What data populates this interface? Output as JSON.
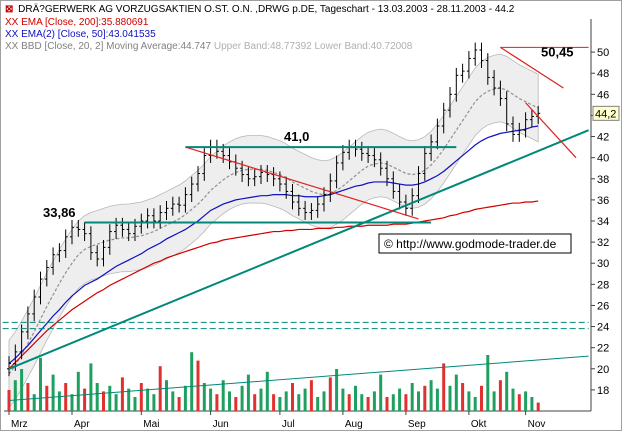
{
  "chart_data": {
    "type": "candlestick",
    "title": "DRÄ?GERWERK AG VORZUGSAKTIEN O.ST. O.N. ,DRWG p.DE, Tageschart - 13.03.2003 - 28.11.2003 - 44.2",
    "legend": [
      {
        "marker": "XX",
        "text": "EMA [Close, 200]:35.880691",
        "color": "#d00000"
      },
      {
        "marker": "XX",
        "text": "EMA(2) [Close, 50]:43.041535",
        "color": "#1010c0"
      },
      {
        "marker": "XX",
        "text": "BBD [Close, 20, 2] Moving Average:44.747",
        "extra": "Upper Band:48.77392 Lower Band:40.72008",
        "color": "#808080"
      }
    ],
    "x_tick_labels": [
      "Mrz",
      "Apr",
      "Mai",
      "Jun",
      "Jul",
      "Aug",
      "Sep",
      "Okt",
      "Nov"
    ],
    "y_tick_labels": [
      "50",
      "48",
      "46",
      "44",
      "42",
      "40",
      "38",
      "36",
      "34",
      "32",
      "30",
      "28",
      "26",
      "24",
      "22",
      "20",
      "18"
    ],
    "ylim": [
      16,
      52
    ],
    "current_price_label": "44,2",
    "annotations": {
      "level_high": "50,45",
      "level_mid": "41,0",
      "level_low": "33,86",
      "watermark": "© http://www.godmode-trader.de"
    },
    "series": {
      "close": [
        20.5,
        21.6,
        23.5,
        25.2,
        26.8,
        28.5,
        29.6,
        30.8,
        31.2,
        32.5,
        33.4,
        33.2,
        32.8,
        31.0,
        30.4,
        31.5,
        33.0,
        33.6,
        33.2,
        32.8,
        33.5,
        34.0,
        34.5,
        34.0,
        34.8,
        35.2,
        35.6,
        35.5,
        36.5,
        37.5,
        38.5,
        40.2,
        41.0,
        40.6,
        40.2,
        39.6,
        39.0,
        38.4,
        38.0,
        38.2,
        38.6,
        38.4,
        38.0,
        37.5,
        36.8,
        35.8,
        35.2,
        34.8,
        35.0,
        35.6,
        36.5,
        37.8,
        39.5,
        40.5,
        41.0,
        40.8,
        40.4,
        40.2,
        39.8,
        39.0,
        38.0,
        36.8,
        35.8,
        35.2,
        36.4,
        38.5,
        40.4,
        41.5,
        43.0,
        44.5,
        46.0,
        47.8,
        48.2,
        49.4,
        50.2,
        49.2,
        47.6,
        46.6,
        45.6,
        43.2,
        42.2,
        42.6,
        43.6,
        43.9,
        44.2
      ],
      "ema200": [
        20.0,
        20.6,
        21.2,
        21.8,
        22.4,
        23.0,
        23.6,
        24.1,
        24.6,
        25.1,
        25.6,
        26.0,
        26.4,
        26.8,
        27.2,
        27.5,
        27.9,
        28.2,
        28.5,
        28.8,
        29.1,
        29.4,
        29.7,
        30.0,
        30.2,
        30.5,
        30.7,
        30.9,
        31.1,
        31.3,
        31.5,
        31.7,
        31.9,
        32.0,
        32.2,
        32.3,
        32.4,
        32.5,
        32.6,
        32.7,
        32.8,
        32.9,
        33.0,
        33.0,
        33.1,
        33.1,
        33.2,
        33.2,
        33.2,
        33.3,
        33.3,
        33.3,
        33.4,
        33.4,
        33.5,
        33.5,
        33.5,
        33.6,
        33.6,
        33.6,
        33.6,
        33.7,
        33.7,
        33.7,
        33.8,
        33.9,
        34.0,
        34.1,
        34.2,
        34.3,
        34.5,
        34.6,
        34.8,
        34.9,
        35.1,
        35.2,
        35.3,
        35.4,
        35.5,
        35.6,
        35.7,
        35.7,
        35.8,
        35.8,
        35.9
      ],
      "ema50": [
        20.5,
        21.0,
        21.6,
        22.2,
        22.9,
        23.6,
        24.3,
        25.0,
        25.6,
        26.3,
        26.9,
        27.4,
        27.9,
        28.2,
        28.5,
        28.9,
        29.3,
        29.7,
        30.0,
        30.3,
        30.6,
        30.9,
        31.3,
        31.6,
        31.9,
        32.3,
        32.6,
        32.9,
        33.2,
        33.6,
        34.0,
        34.5,
        35.0,
        35.3,
        35.6,
        35.8,
        36.0,
        36.1,
        36.2,
        36.3,
        36.4,
        36.4,
        36.5,
        36.5,
        36.5,
        36.4,
        36.4,
        36.3,
        36.3,
        36.3,
        36.4,
        36.5,
        36.7,
        36.9,
        37.1,
        37.3,
        37.4,
        37.6,
        37.7,
        37.7,
        37.7,
        37.6,
        37.5,
        37.4,
        37.4,
        37.5,
        37.7,
        38.0,
        38.3,
        38.7,
        39.2,
        39.7,
        40.2,
        40.7,
        41.2,
        41.6,
        41.9,
        42.1,
        42.3,
        42.4,
        42.5,
        42.6,
        42.7,
        42.9,
        43.0
      ],
      "bb_mid": [
        19.5,
        20.3,
        21.3,
        22.4,
        23.5,
        24.7,
        25.9,
        27.0,
        28.1,
        29.1,
        30.0,
        30.8,
        31.3,
        31.6,
        31.8,
        32.0,
        32.2,
        32.3,
        32.4,
        32.4,
        32.5,
        32.6,
        32.8,
        33.0,
        33.3,
        33.6,
        33.9,
        34.2,
        34.6,
        35.1,
        35.6,
        36.2,
        36.9,
        37.4,
        37.9,
        38.3,
        38.6,
        38.8,
        38.9,
        38.9,
        38.9,
        38.8,
        38.6,
        38.4,
        38.1,
        37.7,
        37.4,
        37.1,
        36.8,
        36.6,
        36.5,
        36.6,
        36.9,
        37.3,
        37.8,
        38.3,
        38.8,
        39.2,
        39.4,
        39.5,
        39.4,
        39.1,
        38.8,
        38.5,
        38.4,
        38.5,
        38.8,
        39.3,
        40.0,
        40.8,
        41.7,
        42.6,
        43.5,
        44.4,
        45.3,
        45.9,
        46.3,
        46.5,
        46.6,
        46.4,
        46.0,
        45.6,
        45.3,
        45.0,
        44.7
      ],
      "volume": [
        1.5,
        2.2,
        3.0,
        2.0,
        1.2,
        3.8,
        1.8,
        2.6,
        1.4,
        2.0,
        1.2,
        2.8,
        1.6,
        3.4,
        2.0,
        1.4,
        1.8,
        1.2,
        2.4,
        1.6,
        1.0,
        2.0,
        1.6,
        1.2,
        3.2,
        2.2,
        1.4,
        1.0,
        1.8,
        4.2,
        3.6,
        2.0,
        1.6,
        1.2,
        2.2,
        1.4,
        1.0,
        1.8,
        2.6,
        1.2,
        1.6,
        2.8,
        1.2,
        1.0,
        1.4,
        2.0,
        1.2,
        1.6,
        2.2,
        1.0,
        1.4,
        2.4,
        3.0,
        1.6,
        1.2,
        1.8,
        1.2,
        1.0,
        1.4,
        2.6,
        1.0,
        1.2,
        1.6,
        1.2,
        2.0,
        1.4,
        1.8,
        2.2,
        1.6,
        3.4,
        1.8,
        2.6,
        2.0,
        1.4,
        1.0,
        1.8,
        4.0,
        1.4,
        2.2,
        2.8,
        1.6,
        1.2,
        1.4,
        1.0,
        0.6
      ]
    }
  }
}
